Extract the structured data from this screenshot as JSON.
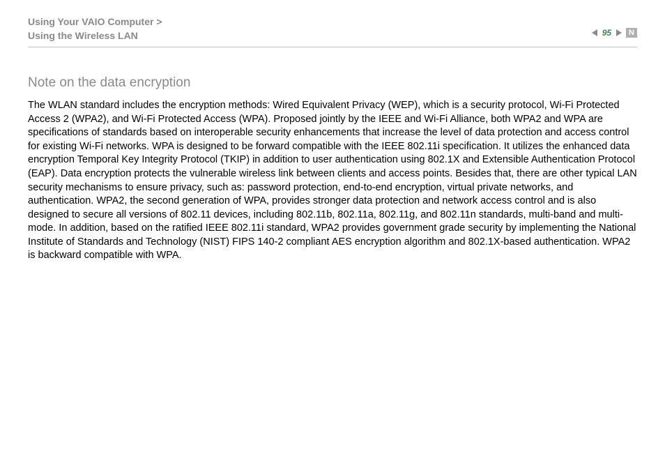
{
  "header": {
    "breadcrumb_line1": "Using Your VAIO Computer >",
    "breadcrumb_line2": "Using the Wireless LAN",
    "page_number": "95",
    "nav_n_label": "N"
  },
  "content": {
    "section_title": "Note on the data encryption",
    "body_text": "The WLAN standard includes the encryption methods: Wired Equivalent Privacy (WEP), which is a security protocol, Wi-Fi Protected Access 2 (WPA2), and Wi-Fi Protected Access (WPA). Proposed jointly by the IEEE and Wi-Fi Alliance, both WPA2 and WPA are specifications of standards based on interoperable security enhancements that increase the level of data protection and access control for existing Wi-Fi networks. WPA is designed to be forward compatible with the IEEE 802.11i specification. It utilizes the enhanced data encryption Temporal Key Integrity Protocol (TKIP) in addition to user authentication using 802.1X and Extensible Authentication Protocol (EAP). Data encryption protects the vulnerable wireless link between clients and access points. Besides that, there are other typical LAN security mechanisms to ensure privacy, such as: password protection, end-to-end encryption, virtual private networks, and authentication. WPA2, the second generation of WPA, provides stronger data protection and network access control and is also designed to secure all versions of 802.11 devices, including 802.11b, 802.11a, 802.11g, and 802.11n standards, multi-band and multi-mode. In addition, based on the ratified IEEE 802.11i standard, WPA2 provides government grade security by implementing the National Institute of Standards and Technology (NIST) FIPS 140-2 compliant AES encryption algorithm and 802.1X-based authentication. WPA2 is backward compatible with WPA."
  },
  "colors": {
    "breadcrumb_text": "#8a8a8a",
    "section_title": "#8a8a8a",
    "body_text": "#000000",
    "page_number": "#4a7a5a",
    "divider": "#c0c0c0",
    "nav_arrow": "#8a8a8a",
    "background": "#ffffff"
  },
  "typography": {
    "breadcrumb_fontsize": 14,
    "section_title_fontsize": 19,
    "body_fontsize": 14.5,
    "page_number_fontsize": 12,
    "font_family": "Arial, Helvetica, sans-serif"
  }
}
